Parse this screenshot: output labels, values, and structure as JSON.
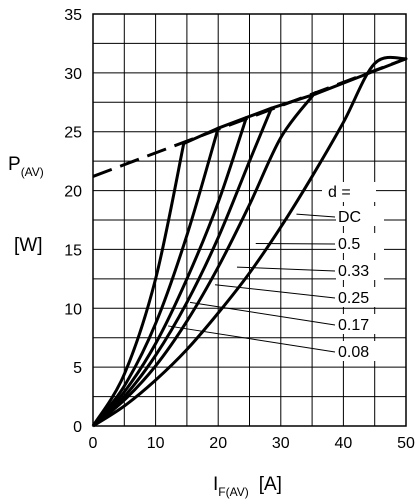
{
  "chart_data": {
    "type": "line",
    "xlabel_main": "I",
    "xlabel_sub": "F(AV)",
    "xlabel_unit": "[A]",
    "ylabel_main": "P",
    "ylabel_sub": "(AV)",
    "ylabel_unit": "[W]",
    "xlim": [
      0,
      50
    ],
    "ylim": [
      0,
      35
    ],
    "xticks": [
      "0",
      "10",
      "20",
      "30",
      "40",
      "50"
    ],
    "yticks": [
      "0",
      "5",
      "10",
      "15",
      "20",
      "25",
      "30",
      "35"
    ],
    "grid": true,
    "legend_title": "d =",
    "series": [
      {
        "name": "DC",
        "x": [
          0,
          5,
          10,
          15,
          20,
          25,
          30,
          35,
          40,
          45,
          50
        ],
        "y": [
          0,
          1.7,
          3.9,
          6.5,
          9.6,
          13.0,
          16.9,
          21.2,
          25.8,
          30.8,
          31.2
        ],
        "style": "solid"
      },
      {
        "name": "0.5",
        "x": [
          0,
          5,
          10,
          15,
          20,
          25,
          30,
          35,
          35.5
        ],
        "y": [
          0,
          2.2,
          5.1,
          8.9,
          13.5,
          18.8,
          24.5,
          28.0,
          28.2
        ],
        "style": "solid"
      },
      {
        "name": "0.33",
        "x": [
          0,
          5,
          10,
          15,
          20,
          25,
          28.5
        ],
        "y": [
          0,
          2.5,
          6.0,
          10.5,
          16.0,
          22.5,
          27.0
        ],
        "style": "solid"
      },
      {
        "name": "0.25",
        "x": [
          0,
          5,
          10,
          15,
          20,
          24.5
        ],
        "y": [
          0,
          2.9,
          7.0,
          12.5,
          19.0,
          26.2
        ],
        "style": "solid"
      },
      {
        "name": "0.17",
        "x": [
          0,
          5,
          10,
          15,
          20
        ],
        "y": [
          0,
          3.4,
          8.7,
          16.2,
          25.3
        ],
        "style": "solid"
      },
      {
        "name": "0.08",
        "x": [
          0,
          5,
          10,
          14.5
        ],
        "y": [
          0,
          4.4,
          12.5,
          24.0
        ],
        "style": "solid"
      },
      {
        "name": "",
        "x": [
          0,
          50
        ],
        "y": [
          21.2,
          31.2
        ],
        "style": "dashed"
      }
    ],
    "tops": [
      {
        "x": 14.5,
        "y": 24.0
      },
      {
        "x": 20,
        "y": 25.3
      },
      {
        "x": 24.5,
        "y": 26.2
      },
      {
        "x": 28.5,
        "y": 27.0
      },
      {
        "x": 35.5,
        "y": 28.2
      },
      {
        "x": 50,
        "y": 31.2
      }
    ],
    "legend_pointers": [
      {
        "label": "DC",
        "x": 32.5,
        "y": 18.0
      },
      {
        "label": "0.5",
        "x": 26.0,
        "y": 15.5
      },
      {
        "label": "0.33",
        "x": 23.0,
        "y": 13.5
      },
      {
        "label": "0.25",
        "x": 19.5,
        "y": 12.0
      },
      {
        "label": "0.17",
        "x": 15.5,
        "y": 10.5
      },
      {
        "label": "0.08",
        "x": 12.0,
        "y": 8.5
      }
    ]
  }
}
